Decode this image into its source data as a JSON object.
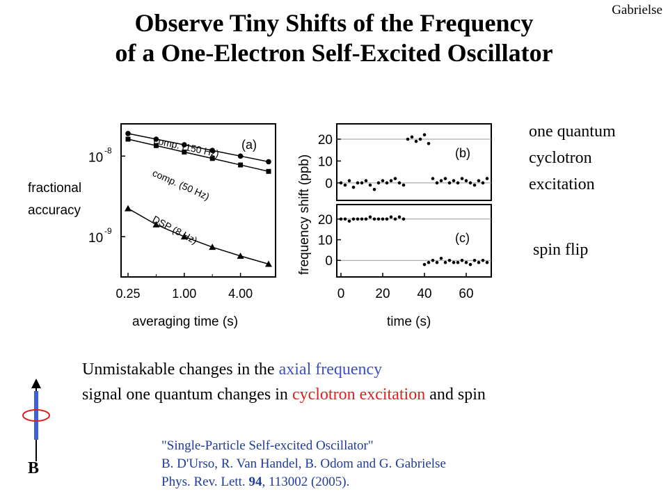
{
  "header": {
    "title_line1": "Observe Tiny Shifts of the Frequency",
    "title_line2": "of a One-Electron Self-Excited Oscillator",
    "author": "Gabrielse"
  },
  "annotations": {
    "cyclotron_lines": [
      "one quantum",
      "cyclotron",
      "excitation"
    ],
    "spin": "spin flip"
  },
  "text": {
    "line1_start": "Unmistakable changes in the",
    "line1_highlight": "axial frequency",
    "line2_start": "signal one quantum changes in",
    "line2_highlight": "cyclotron excitation",
    "line2_end": "and spin",
    "color_axial": "#3b4fc4",
    "color_cyclotron": "#e02020"
  },
  "reference": {
    "line1": "\"Single-Particle Self-excited Oscillator\"",
    "line2": "B. D'Urso, R. Van Handel, B. Odom and G. Gabrielse",
    "journal": "Phys. Rev. Lett.",
    "volume": "94",
    "rest": ", 113002 (2005)."
  },
  "field_label": "B",
  "chart_data": [
    {
      "type": "scatter",
      "panel": "(a)",
      "xlabel": "averaging time (s)",
      "ylabel_lines": [
        "fractional",
        "accuracy"
      ],
      "x_scale": "log",
      "x_ticks": [
        0.25,
        1.0,
        4.0
      ],
      "x_tick_labels": [
        "0.25",
        "1.00",
        "4.00"
      ],
      "y_scale": "log",
      "y_ticks": [
        "10-8",
        "10-9"
      ],
      "xlim": [
        0.25,
        8
      ],
      "ylim_log10": [
        -9.5,
        -7.6
      ],
      "series": [
        {
          "name": "comp. (150 Hz)",
          "marker": "circle",
          "x": [
            0.25,
            0.5,
            1.0,
            2.0,
            4.0,
            8.0
          ],
          "log10_y": [
            -7.72,
            -7.79,
            -7.86,
            -7.93,
            -8.0,
            -8.07
          ]
        },
        {
          "name": "comp. (50 Hz)",
          "marker": "square",
          "x": [
            0.25,
            0.5,
            1.0,
            2.0,
            4.0,
            8.0
          ],
          "log10_y": [
            -7.79,
            -7.87,
            -7.95,
            -8.03,
            -8.11,
            -8.19
          ]
        },
        {
          "name": "DSP (8 Hz)",
          "marker": "triangle",
          "x": [
            0.25,
            0.5,
            1.0,
            2.0,
            4.0,
            8.0
          ],
          "log10_y": [
            -8.65,
            -8.85,
            -9.0,
            -9.13,
            -9.24,
            -9.34
          ]
        }
      ]
    },
    {
      "type": "scatter",
      "panel": "(b)",
      "ylabel": "frequency shift (ppb)",
      "xlim": [
        -2,
        72
      ],
      "ylim": [
        -8,
        27
      ],
      "y_ticks": [
        0,
        10,
        20
      ],
      "grid_lines_y": [
        0,
        20
      ],
      "x": [
        0,
        2,
        4,
        6,
        8,
        10,
        12,
        14,
        16,
        18,
        20,
        22,
        24,
        26,
        28,
        30,
        32,
        34,
        36,
        38,
        40,
        42,
        44,
        46,
        48,
        50,
        52,
        54,
        56,
        58,
        60,
        62,
        64,
        66,
        68,
        70
      ],
      "y": [
        0,
        -1,
        1,
        -2,
        0,
        0,
        1,
        -1,
        -3,
        0,
        1,
        0,
        1,
        2,
        0,
        -1,
        20,
        21,
        19,
        20,
        22,
        18,
        2,
        0,
        1,
        2,
        0,
        1,
        0,
        2,
        1,
        0,
        -1,
        1,
        0,
        2
      ]
    },
    {
      "type": "scatter",
      "panel": "(c)",
      "xlabel": "time (s)",
      "xlim": [
        -2,
        72
      ],
      "ylim": [
        -8,
        27
      ],
      "x_ticks": [
        0,
        20,
        40,
        60
      ],
      "y_ticks": [
        0,
        10,
        20
      ],
      "grid_lines_y": [
        0,
        20
      ],
      "x": [
        0,
        2,
        4,
        6,
        8,
        10,
        12,
        14,
        16,
        18,
        20,
        22,
        24,
        26,
        28,
        30,
        40,
        42,
        44,
        46,
        48,
        50,
        52,
        54,
        56,
        58,
        60,
        62,
        64,
        66,
        68,
        70
      ],
      "y": [
        20,
        20,
        19,
        20,
        20,
        20,
        20,
        21,
        20,
        20,
        20,
        20,
        21,
        20,
        21,
        20,
        -2,
        -1,
        0,
        -1,
        1,
        -1,
        0,
        -1,
        -1,
        0,
        -1,
        -2,
        0,
        -1,
        0,
        -1
      ]
    }
  ]
}
